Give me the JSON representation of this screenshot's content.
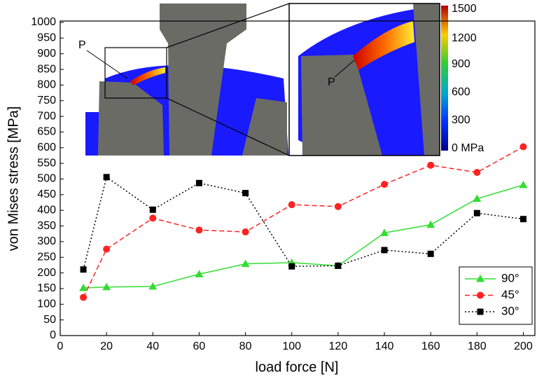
{
  "chart_data": {
    "type": "line",
    "x_label": "load force [N]",
    "y_label": "von Mises stress [MPa]",
    "xlim": [
      0,
      205
    ],
    "xticks": [
      0,
      20,
      40,
      60,
      80,
      100,
      120,
      140,
      160,
      180,
      200
    ],
    "ylim": [
      0,
      1000
    ],
    "yticks": [
      0,
      50,
      100,
      150,
      200,
      250,
      300,
      350,
      400,
      450,
      500,
      550,
      600,
      650,
      700,
      750,
      800,
      850,
      900,
      950,
      1000
    ],
    "legend": "lower right",
    "series": [
      {
        "name": "90°",
        "color": "#33dd33",
        "marker": "triangle",
        "dash": "solid",
        "x": [
          10,
          20,
          40,
          60,
          80,
          100,
          120,
          140,
          160,
          180,
          200
        ],
        "values": [
          152,
          155,
          157,
          196,
          229,
          233,
          223,
          328,
          354,
          437,
          481
        ]
      },
      {
        "name": "45°",
        "color": "#ff2222",
        "marker": "circle",
        "dash": "dashed",
        "x": [
          10,
          20,
          40,
          60,
          80,
          100,
          120,
          140,
          160,
          180,
          200
        ],
        "values": [
          122,
          276,
          375,
          337,
          331,
          418,
          412,
          483,
          544,
          521,
          603
        ]
      },
      {
        "name": "30°",
        "color": "#000000",
        "marker": "square",
        "dash": "dotted",
        "x": [
          10,
          20,
          40,
          60,
          80,
          100,
          120,
          140,
          160,
          180,
          200
        ],
        "values": [
          211,
          506,
          402,
          487,
          455,
          221,
          223,
          273,
          261,
          391,
          372
        ]
      }
    ],
    "inset": {
      "point_label": "P",
      "colorbar_labels": [
        "1500",
        "1200",
        "900",
        "600",
        "300",
        "0 MPa"
      ]
    }
  }
}
